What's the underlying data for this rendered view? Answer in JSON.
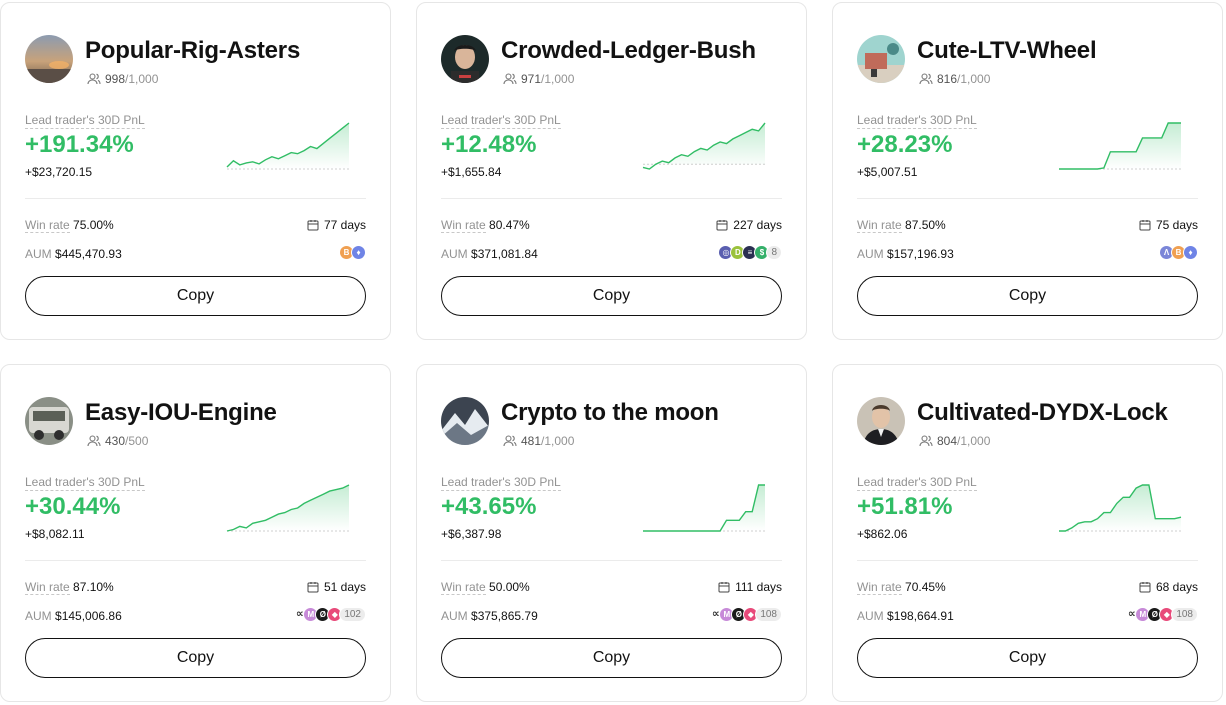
{
  "labels": {
    "pnl": "Lead trader's 30D PnL",
    "win_rate": "Win rate",
    "aum": "AUM",
    "copy": "Copy"
  },
  "colors": {
    "positive": "#31bd65",
    "negative": "#e8505b",
    "text_primary": "#121212",
    "text_secondary": "#929292",
    "border": "#e6e6e6"
  },
  "icons": {
    "followers": "users-icon",
    "days": "calendar-icon"
  },
  "cards": [
    {
      "name": "Popular-Rig-Asters",
      "followers": "998",
      "followers_cap": "/1,000",
      "pnl_pct": "+191.34%",
      "pnl_amount": "+$23,720.15",
      "win_rate": "75.00%",
      "days": "77 days",
      "aum": "$445,470.93",
      "avatar": "sunset-avatar",
      "coins": [
        {
          "symbol": "B",
          "color": "#f0a052"
        },
        {
          "symbol": "♦",
          "color": "#6f84e6"
        }
      ],
      "coins_more": "",
      "sparkline": [
        2,
        8,
        4,
        6,
        7,
        5,
        9,
        12,
        10,
        13,
        16,
        15,
        18,
        22,
        20,
        25,
        30,
        35,
        40,
        45
      ]
    },
    {
      "name": "Crowded-Ledger-Bush",
      "followers": "971",
      "followers_cap": "/1,000",
      "pnl_pct": "+12.48%",
      "pnl_amount": "+$1,655.84",
      "win_rate": "80.47%",
      "days": "227 days",
      "aum": "$371,081.84",
      "avatar": "portrait-avatar",
      "coins": [
        {
          "symbol": "◎",
          "color": "#5a5fb0"
        },
        {
          "symbol": "D",
          "color": "#9bc23c"
        },
        {
          "symbol": "≡",
          "color": "#2b2f52"
        },
        {
          "symbol": "$",
          "color": "#35b06a"
        }
      ],
      "coins_more": "8",
      "sparkline": [
        -2,
        -3,
        0,
        2,
        1,
        4,
        6,
        5,
        8,
        10,
        9,
        12,
        14,
        13,
        16,
        18,
        20,
        22,
        21,
        26
      ]
    },
    {
      "name": "Cute-LTV-Wheel",
      "followers": "816",
      "followers_cap": "/1,000",
      "pnl_pct": "+28.23%",
      "pnl_amount": "+$5,007.51",
      "win_rate": "87.50%",
      "days": "75 days",
      "aum": "$157,196.93",
      "avatar": "scene-avatar",
      "coins": [
        {
          "symbol": "Λ",
          "color": "#7b86d8"
        },
        {
          "symbol": "B",
          "color": "#f0a052"
        },
        {
          "symbol": "♦",
          "color": "#6f84e6"
        }
      ],
      "coins_more": "",
      "sparkline": [
        0,
        0,
        0,
        0,
        0,
        0,
        0,
        1,
        15,
        15,
        15,
        15,
        15,
        27,
        27,
        27,
        27,
        40,
        40,
        40
      ]
    },
    {
      "name": "Easy-IOU-Engine",
      "followers": "430",
      "followers_cap": "/500",
      "pnl_pct": "+30.44%",
      "pnl_amount": "+$8,082.11",
      "win_rate": "87.10%",
      "days": "51 days",
      "aum": "$145,006.86",
      "avatar": "car-avatar",
      "coins": [
        {
          "symbol": "∝",
          "color": "loop"
        },
        {
          "symbol": "M",
          "color": "#c78ad8"
        },
        {
          "symbol": "Ø",
          "color": "#1a1a1a"
        },
        {
          "symbol": "◆",
          "color": "#e84a7a"
        }
      ],
      "coins_more": "102",
      "sparkline": [
        0,
        1,
        3,
        2,
        5,
        6,
        7,
        9,
        11,
        12,
        14,
        15,
        18,
        20,
        22,
        24,
        26,
        27,
        28,
        30
      ]
    },
    {
      "name": "Crypto to the moon",
      "followers": "481",
      "followers_cap": "/1,000",
      "pnl_pct": "+43.65%",
      "pnl_amount": "+$6,387.98",
      "win_rate": "50.00%",
      "days": "111 days",
      "aum": "$375,865.79",
      "avatar": "mountain-avatar",
      "coins": [
        {
          "symbol": "∝",
          "color": "loop"
        },
        {
          "symbol": "M",
          "color": "#c78ad8"
        },
        {
          "symbol": "Ø",
          "color": "#1a1a1a"
        },
        {
          "symbol": "◆",
          "color": "#e84a7a"
        }
      ],
      "coins_more": "108",
      "sparkline": [
        0,
        0,
        0,
        0,
        0,
        0,
        0,
        0,
        0,
        0,
        0,
        0,
        0,
        10,
        10,
        10,
        18,
        18,
        43,
        43
      ]
    },
    {
      "name": "Cultivated-DYDX-Lock",
      "followers": "804",
      "followers_cap": "/1,000",
      "pnl_pct": "+51.81%",
      "pnl_amount": "+$862.06",
      "win_rate": "70.45%",
      "days": "68 days",
      "aum": "$198,664.91",
      "avatar": "man-avatar",
      "coins": [
        {
          "symbol": "∝",
          "color": "loop"
        },
        {
          "symbol": "M",
          "color": "#c78ad8"
        },
        {
          "symbol": "Ø",
          "color": "#1a1a1a"
        },
        {
          "symbol": "◆",
          "color": "#e84a7a"
        }
      ],
      "coins_more": "108",
      "sparkline": [
        0,
        0,
        2,
        5,
        6,
        6,
        8,
        12,
        12,
        18,
        22,
        22,
        28,
        30,
        30,
        8,
        8,
        8,
        8,
        9
      ]
    }
  ]
}
